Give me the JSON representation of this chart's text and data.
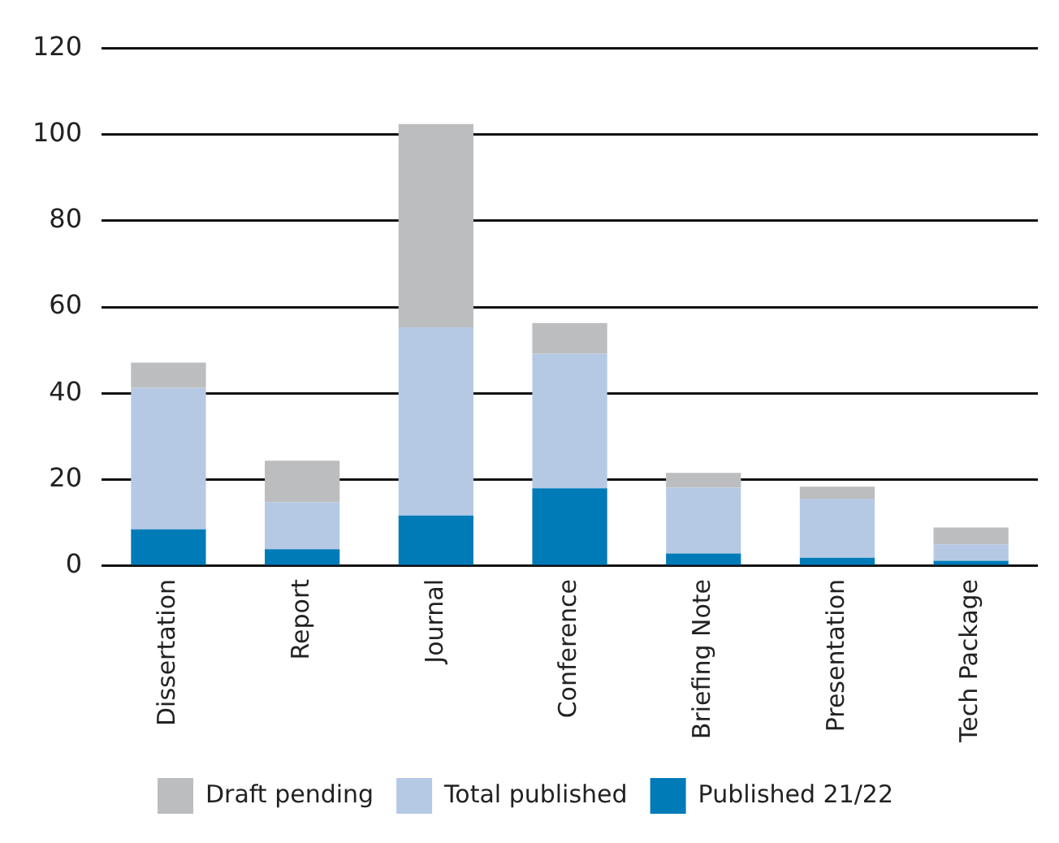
{
  "chart_data": {
    "type": "bar",
    "stacked": true,
    "categories": [
      "Dissertation",
      "Report",
      "Journal",
      "Conference",
      "Briefing Note",
      "Presentation",
      "Tech Package"
    ],
    "series": [
      {
        "name": "Published 21/22",
        "color": "#007bb8",
        "values": [
          8.5,
          3.9,
          11.7,
          18.0,
          2.9,
          1.9,
          1.2
        ]
      },
      {
        "name": "Total published",
        "color": "#b6c9e4",
        "values": [
          32.8,
          10.9,
          43.6,
          31.2,
          15.3,
          13.7,
          3.8
        ]
      },
      {
        "name": "Draft pending",
        "color": "#bcbdbf",
        "values": [
          5.8,
          9.6,
          47.1,
          7.1,
          3.4,
          2.8,
          3.9
        ]
      }
    ],
    "ylim": [
      0,
      120
    ],
    "yticks": [
      0,
      20,
      40,
      60,
      80,
      100,
      120
    ],
    "grid": "y",
    "legend": "bottom"
  }
}
